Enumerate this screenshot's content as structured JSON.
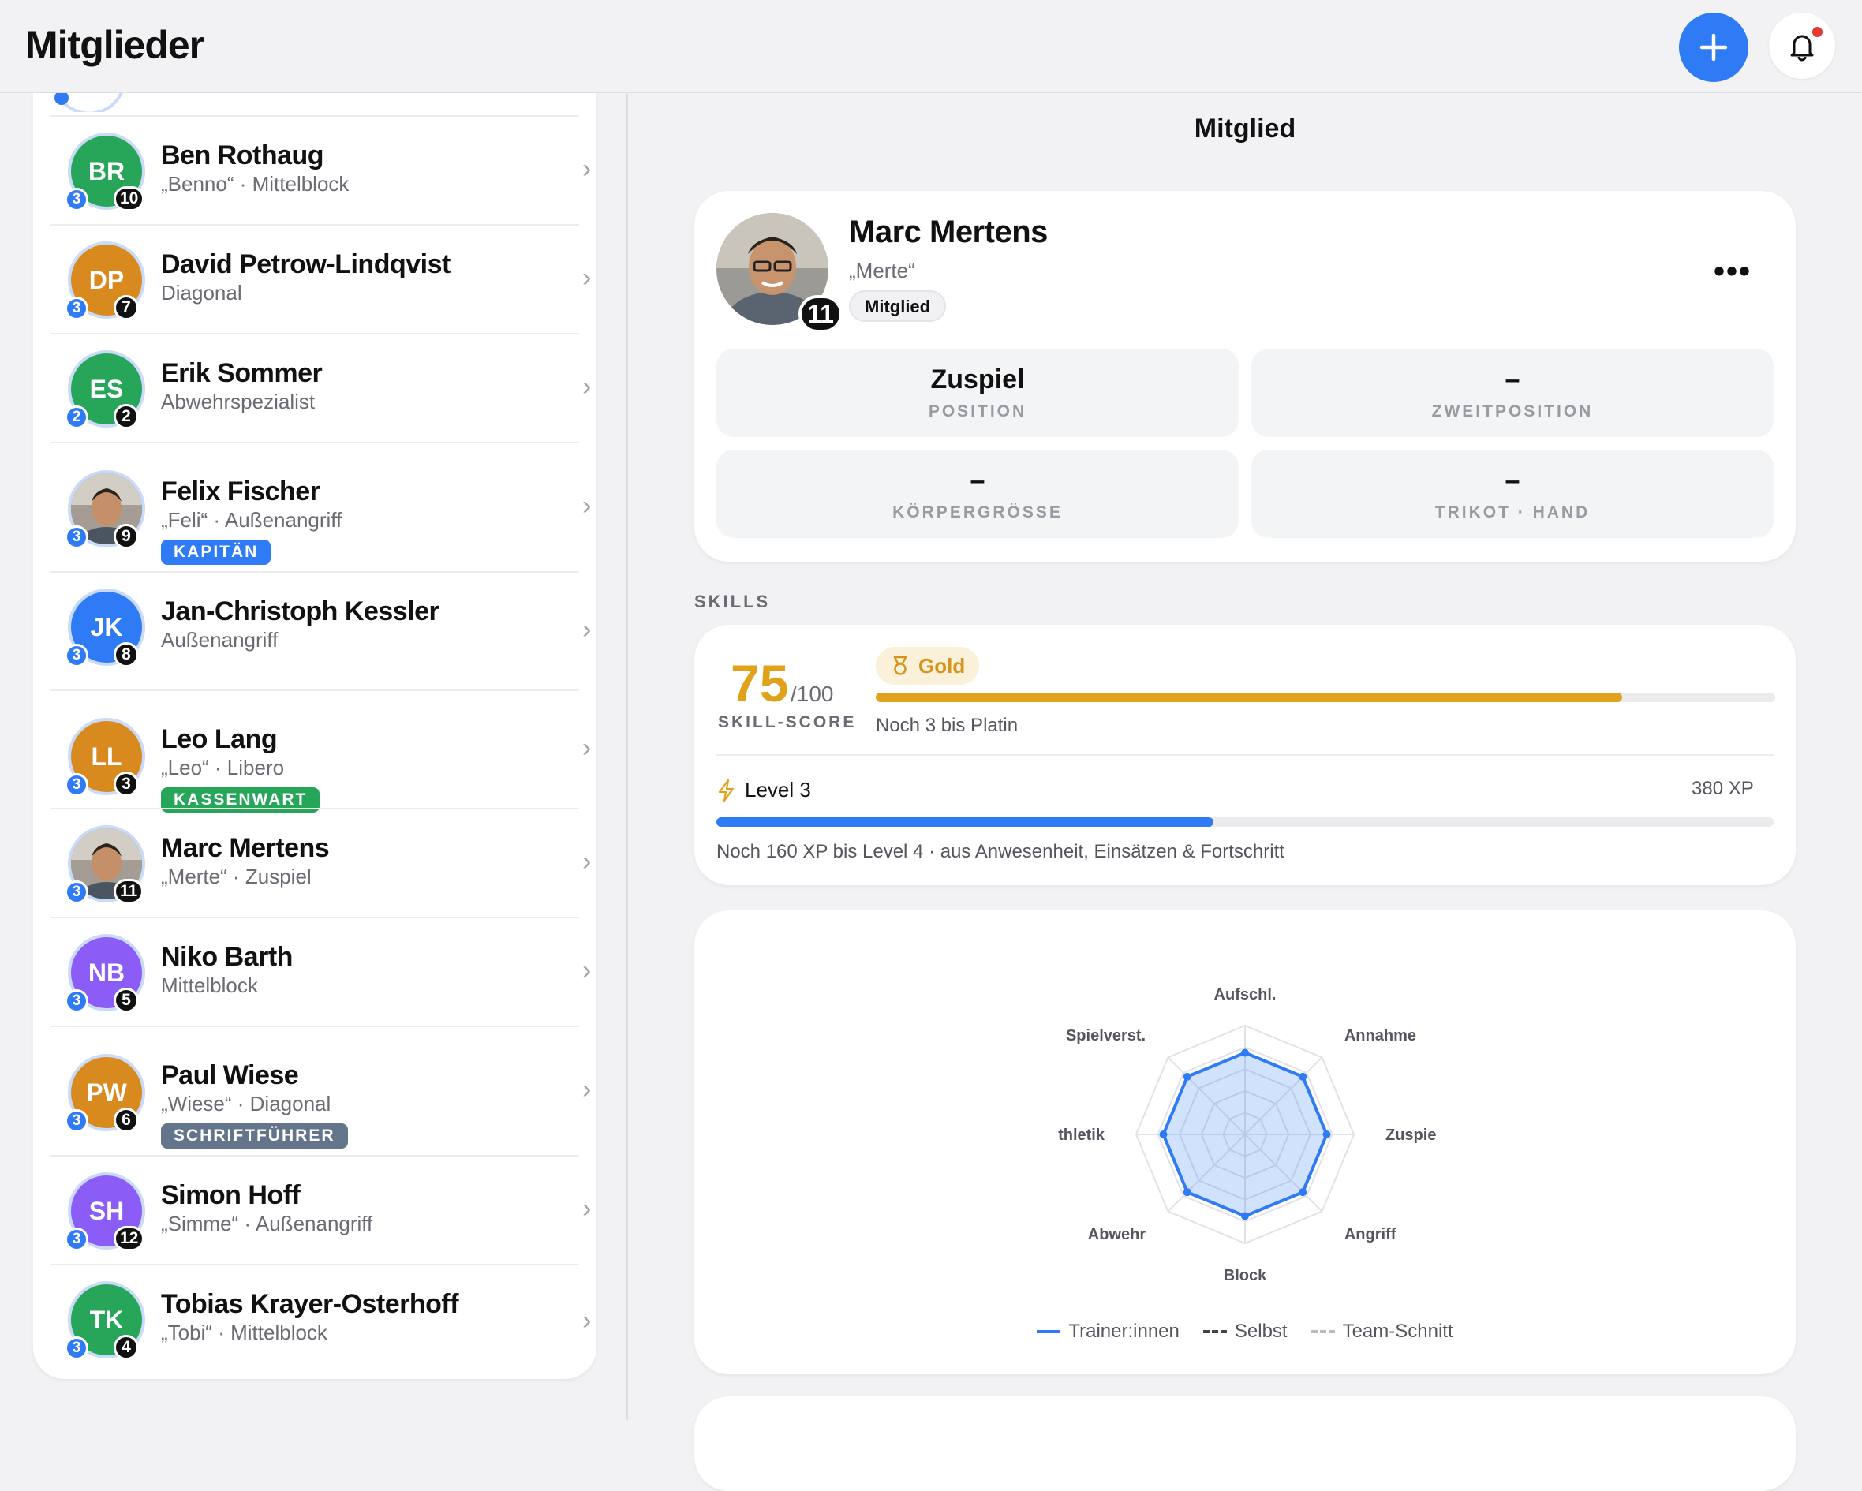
{
  "header": {
    "title": "Mitglieder"
  },
  "members": [
    {
      "initials": "BR",
      "color": "#27a65a",
      "name": "Ben Rothaug",
      "sub": "„Benno“ · Mittelblock",
      "level": "3",
      "number": "10",
      "role": ""
    },
    {
      "initials": "DP",
      "color": "#d98a1f",
      "name": "David Petrow-Lindqvist",
      "sub": "Diagonal",
      "level": "3",
      "number": "7",
      "role": ""
    },
    {
      "initials": "ES",
      "color": "#27a65a",
      "name": "Erik Sommer",
      "sub": "Abwehrspezialist",
      "level": "2",
      "number": "2",
      "role": ""
    },
    {
      "initials": "",
      "color": "#8a7a6a",
      "name": "Felix Fischer",
      "sub": "„Feli“ · Außenangriff",
      "level": "3",
      "number": "9",
      "role": "KAPITÄN",
      "role_color": "#2f7bf5"
    },
    {
      "initials": "JK",
      "color": "#2f7bf5",
      "name": "Jan-Christoph Kessler",
      "sub": "Außenangriff",
      "level": "3",
      "number": "8",
      "role": ""
    },
    {
      "initials": "LL",
      "color": "#d98a1f",
      "name": "Leo Lang",
      "sub": "„Leo“ · Libero",
      "level": "3",
      "number": "3",
      "role": "KASSENWART",
      "role_color": "#27a65a"
    },
    {
      "initials": "",
      "color": "#6b6b73",
      "name": "Marc Mertens",
      "sub": "„Merte“ · Zuspiel",
      "level": "3",
      "number": "11",
      "role": ""
    },
    {
      "initials": "NB",
      "color": "#8b5cf6",
      "name": "Niko Barth",
      "sub": "Mittelblock",
      "level": "3",
      "number": "5",
      "role": ""
    },
    {
      "initials": "PW",
      "color": "#d98a1f",
      "name": "Paul Wiese",
      "sub": "„Wiese“ · Diagonal",
      "level": "3",
      "number": "6",
      "role": "SCHRIFTFÜHRER",
      "role_color": "#64748b"
    },
    {
      "initials": "SH",
      "color": "#8b5cf6",
      "name": "Simon Hoff",
      "sub": "„Simme“ · Außenangriff",
      "level": "3",
      "number": "12",
      "role": ""
    },
    {
      "initials": "TK",
      "color": "#27a65a",
      "name": "Tobias Krayer-Osterhoff",
      "sub": "„Tobi“ · Mittelblock",
      "level": "3",
      "number": "4",
      "role": ""
    }
  ],
  "detail": {
    "title": "Mitglied",
    "name": "Marc Mertens",
    "nickname": "„Merte“",
    "number": "11",
    "status": "Mitglied",
    "more": "•••",
    "tiles": [
      {
        "value": "Zuspiel",
        "label": "POSITION"
      },
      {
        "value": "–",
        "label": "ZWEITPOSITION"
      },
      {
        "value": "–",
        "label": "KÖRPERGRÖSSE"
      },
      {
        "value": "–",
        "label": "TRIKOT · HAND"
      }
    ]
  },
  "skills": {
    "section_label": "SKILLS",
    "score": "75",
    "score_max": "/100",
    "score_label": "SKILL-SCORE",
    "tier": "Gold",
    "tier_progress": 0.83,
    "tier_hint": "Noch 3 bis Platin",
    "level_label": "Level 3",
    "xp": "380 XP",
    "level_progress": 0.47,
    "level_hint": "Noch 160 XP bis Level 4 · aus Anwesenheit, Einsätzen & Fortschritt"
  },
  "radar": {
    "axes": [
      "Aufschl.",
      "Annahme",
      "Zuspie",
      "Angriff",
      "Block",
      "Abwehr",
      "thletik",
      "Spielverst."
    ],
    "values": [
      0.75,
      0.75,
      0.75,
      0.75,
      0.75,
      0.75,
      0.75,
      0.75
    ],
    "series_color": "#2f7bf5",
    "legend": [
      {
        "label": "Trainer:innen",
        "style": "solid",
        "color": "#2f7bf5"
      },
      {
        "label": "Selbst",
        "style": "dashed",
        "color": "#444"
      },
      {
        "label": "Team-Schnitt",
        "style": "dashed",
        "color": "#bbb"
      }
    ]
  }
}
